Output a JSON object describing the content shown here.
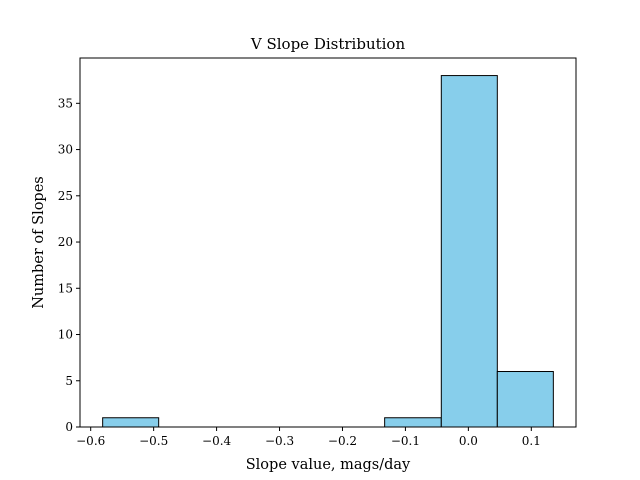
{
  "chart_data": {
    "type": "bar",
    "title": "V Slope Distribution",
    "xlabel": "Slope value, mags/day",
    "ylabel": "Number of Slopes",
    "xlim": [
      -0.617,
      0.171
    ],
    "ylim": [
      0,
      39.9
    ],
    "xticks": [
      -0.6,
      -0.5,
      -0.4,
      -0.3,
      -0.2,
      -0.1,
      0.0,
      0.1
    ],
    "xtick_labels": [
      "−0.6",
      "−0.5",
      "−0.4",
      "−0.3",
      "−0.2",
      "−0.1",
      "0.0",
      "0.1"
    ],
    "yticks": [
      0,
      5,
      10,
      15,
      20,
      25,
      30,
      35
    ],
    "ytick_labels": [
      "0",
      "5",
      "10",
      "15",
      "20",
      "25",
      "30",
      "35"
    ],
    "grid": false,
    "bar_color": "#87CEEB",
    "edge_color": "#000000",
    "bins": [
      {
        "x0": -0.581,
        "x1": -0.492,
        "count": 1
      },
      {
        "x0": -0.492,
        "x1": -0.402,
        "count": 0
      },
      {
        "x0": -0.402,
        "x1": -0.312,
        "count": 0
      },
      {
        "x0": -0.312,
        "x1": -0.222,
        "count": 0
      },
      {
        "x0": -0.222,
        "x1": -0.133,
        "count": 0
      },
      {
        "x0": -0.133,
        "x1": -0.043,
        "count": 1
      },
      {
        "x0": -0.043,
        "x1": 0.046,
        "count": 38
      },
      {
        "x0": 0.046,
        "x1": 0.135,
        "count": 6
      }
    ]
  }
}
